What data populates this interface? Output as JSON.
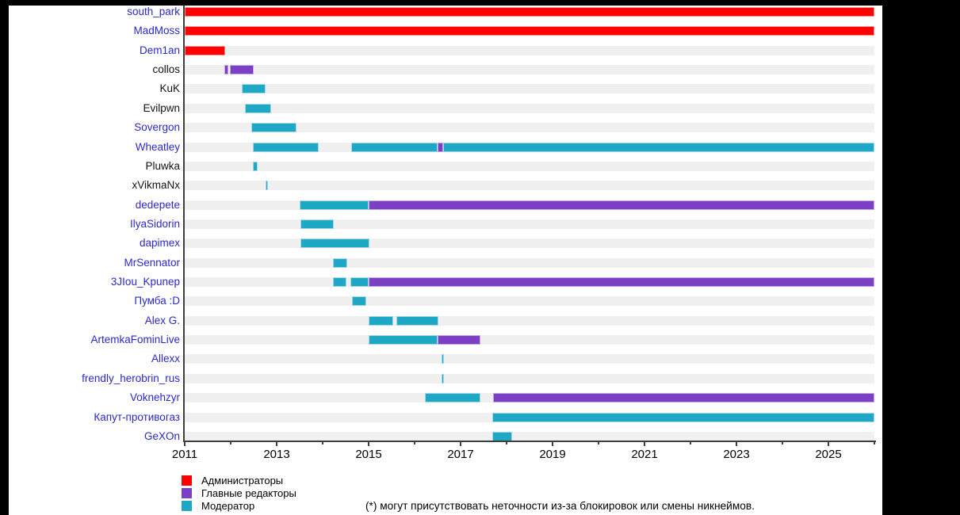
{
  "note": "(*) могут присутствовать неточности из-за блокировок или смены никнеймов.",
  "chart_data": {
    "type": "gantt",
    "x_domain": [
      2011,
      2026
    ],
    "x_major_ticks": [
      2011,
      2013,
      2015,
      2017,
      2019,
      2021,
      2023,
      2025
    ],
    "x_minor_ticks": [
      2012,
      2014,
      2016,
      2018,
      2020,
      2022,
      2024,
      2026
    ],
    "roles": {
      "admin": {
        "label": "Администраторы",
        "color": "#ff0000",
        "edge": "#ff9090"
      },
      "editor": {
        "label": "Главные редакторы",
        "color": "#7b40c4",
        "edge": "#c0a7e6"
      },
      "moderator": {
        "label": "Модератор",
        "color": "#1fa8c6",
        "edge": "#a6d8e7"
      }
    },
    "legend_order": [
      "admin",
      "editor",
      "moderator"
    ],
    "rows": [
      {
        "name": "south_park",
        "link": true,
        "segments": [
          {
            "start": 2011.0,
            "end": 2026.0,
            "role": "admin"
          }
        ]
      },
      {
        "name": "MadMoss",
        "link": true,
        "segments": [
          {
            "start": 2011.0,
            "end": 2026.0,
            "role": "admin"
          }
        ]
      },
      {
        "name": "Dem1an",
        "link": true,
        "segments": [
          {
            "start": 2011.0,
            "end": 2011.88,
            "role": "admin"
          }
        ]
      },
      {
        "name": "collos",
        "link": false,
        "segments": [
          {
            "start": 2011.86,
            "end": 2011.95,
            "role": "editor"
          },
          {
            "start": 2011.99,
            "end": 2012.5,
            "role": "editor"
          }
        ]
      },
      {
        "name": "KuK",
        "link": false,
        "segments": [
          {
            "start": 2012.24,
            "end": 2012.76,
            "role": "moderator"
          }
        ]
      },
      {
        "name": "Evilpwn",
        "link": false,
        "segments": [
          {
            "start": 2012.31,
            "end": 2012.88,
            "role": "moderator"
          }
        ]
      },
      {
        "name": "Sovergon",
        "link": true,
        "segments": [
          {
            "start": 2012.45,
            "end": 2013.43,
            "role": "moderator"
          }
        ]
      },
      {
        "name": "Wheatley",
        "link": true,
        "segments": [
          {
            "start": 2012.48,
            "end": 2013.91,
            "role": "moderator"
          },
          {
            "start": 2014.62,
            "end": 2016.5,
            "role": "moderator"
          },
          {
            "start": 2016.5,
            "end": 2016.62,
            "role": "editor"
          },
          {
            "start": 2016.62,
            "end": 2026.0,
            "role": "moderator"
          }
        ]
      },
      {
        "name": "Pluwka",
        "link": false,
        "segments": [
          {
            "start": 2012.48,
            "end": 2012.59,
            "role": "moderator"
          }
        ]
      },
      {
        "name": "xVikmaNx",
        "link": false,
        "segments": [
          {
            "start": 2012.76,
            "end": 2012.8,
            "role": "moderator"
          }
        ]
      },
      {
        "name": "dedepete",
        "link": true,
        "segments": [
          {
            "start": 2013.5,
            "end": 2015.0,
            "role": "moderator"
          },
          {
            "start": 2015.0,
            "end": 2026.0,
            "role": "editor"
          }
        ]
      },
      {
        "name": "IlyaSidorin",
        "link": true,
        "segments": [
          {
            "start": 2013.51,
            "end": 2014.24,
            "role": "moderator"
          }
        ]
      },
      {
        "name": "dapimex",
        "link": true,
        "segments": [
          {
            "start": 2013.51,
            "end": 2015.02,
            "role": "moderator"
          }
        ]
      },
      {
        "name": "MrSennator",
        "link": true,
        "segments": [
          {
            "start": 2014.22,
            "end": 2014.53,
            "role": "moderator"
          }
        ]
      },
      {
        "name": "3JIou_Kpunep",
        "link": true,
        "segments": [
          {
            "start": 2014.22,
            "end": 2014.51,
            "role": "moderator"
          },
          {
            "start": 2014.61,
            "end": 2015.0,
            "role": "moderator"
          },
          {
            "start": 2015.0,
            "end": 2026.0,
            "role": "editor"
          }
        ]
      },
      {
        "name": "Пумба :D",
        "link": true,
        "segments": [
          {
            "start": 2014.63,
            "end": 2014.94,
            "role": "moderator"
          }
        ]
      },
      {
        "name": "Alex G.",
        "link": true,
        "segments": [
          {
            "start": 2015.0,
            "end": 2015.53,
            "role": "moderator"
          },
          {
            "start": 2015.61,
            "end": 2016.51,
            "role": "moderator"
          }
        ]
      },
      {
        "name": "ArtemkaFominLive",
        "link": true,
        "segments": [
          {
            "start": 2015.0,
            "end": 2016.5,
            "role": "moderator"
          },
          {
            "start": 2016.5,
            "end": 2017.43,
            "role": "editor"
          }
        ]
      },
      {
        "name": "Allexx",
        "link": true,
        "segments": [
          {
            "start": 2016.58,
            "end": 2016.64,
            "role": "moderator"
          }
        ]
      },
      {
        "name": "frendly_herobrin_rus",
        "link": true,
        "segments": [
          {
            "start": 2016.58,
            "end": 2016.64,
            "role": "moderator"
          }
        ]
      },
      {
        "name": "Voknehzyr",
        "link": true,
        "segments": [
          {
            "start": 2016.22,
            "end": 2017.43,
            "role": "moderator"
          },
          {
            "start": 2017.71,
            "end": 2026.0,
            "role": "editor"
          }
        ]
      },
      {
        "name": "Капут-противогаз",
        "link": true,
        "segments": [
          {
            "start": 2017.69,
            "end": 2026.0,
            "role": "moderator"
          }
        ]
      },
      {
        "name": "GeXOn",
        "link": true,
        "segments": [
          {
            "start": 2017.69,
            "end": 2018.12,
            "role": "moderator"
          }
        ]
      }
    ]
  }
}
